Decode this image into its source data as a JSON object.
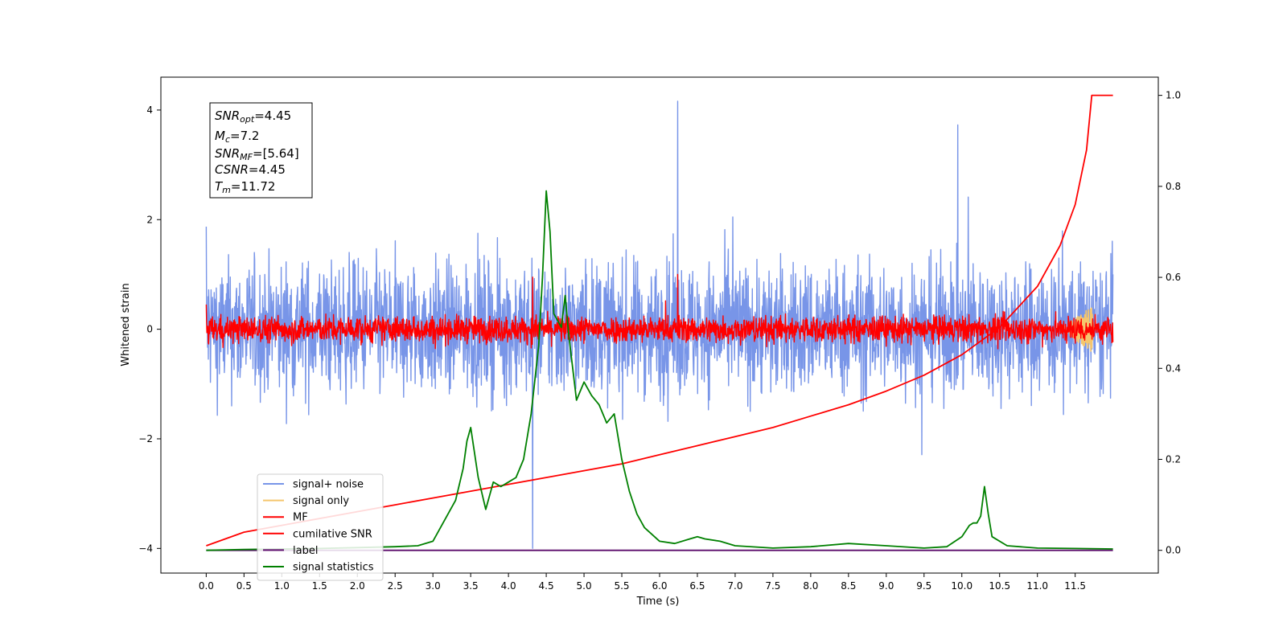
{
  "chart_data": {
    "type": "line",
    "xlabel": "Time (s)",
    "ylabel": "Whitened strain",
    "xlim": [
      -0.6,
      12.6
    ],
    "ylim": [
      -4.45,
      4.6
    ],
    "y2lim": [
      -0.05,
      1.04
    ],
    "grid": false,
    "legend_position": "lower-left",
    "x_ticks": [
      "0.0",
      "0.5",
      "1.0",
      "1.5",
      "2.0",
      "2.5",
      "3.0",
      "3.5",
      "4.0",
      "4.5",
      "5.0",
      "5.5",
      "6.0",
      "6.5",
      "7.0",
      "7.5",
      "8.0",
      "8.5",
      "9.0",
      "9.5",
      "10.0",
      "10.5",
      "11.0",
      "11.5"
    ],
    "y_ticks": [
      "4",
      "2",
      "0",
      "−2",
      "−4"
    ],
    "y2_ticks": [
      "1.0",
      "0.8",
      "0.6",
      "0.4",
      "0.2",
      "0.0"
    ],
    "info_box": {
      "snr_opt": {
        "base": "SNR",
        "sub": "opt",
        "value": "=4.45"
      },
      "mc": {
        "base": "M",
        "sub": "c",
        "value": "=7.2"
      },
      "snr_mf": {
        "base": "SNR",
        "sub": "MF",
        "value": "=[5.64]"
      },
      "csnr": {
        "base": "CSNR",
        "value": "=4.45"
      },
      "tm": {
        "base": "T",
        "sub": "m",
        "value": "=11.72"
      }
    },
    "series": [
      {
        "name": "signal+ noise",
        "color": "#7895e8",
        "axis": "left",
        "style": "noise",
        "x_range": [
          0,
          12
        ],
        "spread": 1.1,
        "peaks": [
          4.16,
          -4.0
        ]
      },
      {
        "name": "signal only",
        "color": "#f5c66e",
        "axis": "left",
        "style": "chirp",
        "x_range": [
          11.3,
          11.76
        ],
        "amplitude": 0.45
      },
      {
        "name": "MF",
        "color": "#ff0000",
        "axis": "left",
        "style": "noise",
        "x_range": [
          0,
          12
        ],
        "spread": 0.22,
        "peaks": [
          1.0,
          0.95
        ]
      },
      {
        "name": "cumilative SNR",
        "color": "#ff0000",
        "axis": "right",
        "x": [
          0.0,
          0.5,
          1.0,
          1.5,
          2.0,
          2.5,
          3.0,
          3.5,
          4.0,
          4.5,
          5.0,
          5.5,
          6.0,
          6.5,
          7.0,
          7.5,
          8.0,
          8.5,
          9.0,
          9.5,
          10.0,
          10.5,
          11.0,
          11.3,
          11.5,
          11.65,
          11.72,
          12.0
        ],
        "values": [
          0.01,
          0.04,
          0.055,
          0.07,
          0.085,
          0.1,
          0.115,
          0.13,
          0.145,
          0.16,
          0.175,
          0.19,
          0.21,
          0.23,
          0.25,
          0.27,
          0.295,
          0.32,
          0.35,
          0.385,
          0.43,
          0.49,
          0.58,
          0.67,
          0.76,
          0.88,
          1.0,
          1.0
        ]
      },
      {
        "name": "label",
        "color": "#5b0a6b",
        "axis": "right",
        "x": [
          0,
          12
        ],
        "values": [
          0.0,
          0.0
        ]
      },
      {
        "name": "signal statistics",
        "color": "#008000",
        "axis": "right",
        "x": [
          0.0,
          0.5,
          1.0,
          1.5,
          2.0,
          2.5,
          2.8,
          3.0,
          3.1,
          3.2,
          3.3,
          3.4,
          3.45,
          3.5,
          3.6,
          3.7,
          3.8,
          3.9,
          4.0,
          4.1,
          4.2,
          4.3,
          4.4,
          4.45,
          4.5,
          4.55,
          4.6,
          4.7,
          4.75,
          4.8,
          4.9,
          5.0,
          5.1,
          5.2,
          5.3,
          5.4,
          5.5,
          5.6,
          5.7,
          5.8,
          6.0,
          6.2,
          6.4,
          6.5,
          6.6,
          6.8,
          7.0,
          7.5,
          8.0,
          8.5,
          9.0,
          9.5,
          9.8,
          10.0,
          10.1,
          10.15,
          10.2,
          10.25,
          10.3,
          10.35,
          10.4,
          10.6,
          11.0,
          11.5,
          12.0
        ],
        "values": [
          0.0,
          0.002,
          0.003,
          0.004,
          0.006,
          0.008,
          0.01,
          0.02,
          0.05,
          0.08,
          0.11,
          0.18,
          0.24,
          0.27,
          0.16,
          0.09,
          0.15,
          0.14,
          0.15,
          0.16,
          0.2,
          0.3,
          0.45,
          0.6,
          0.79,
          0.7,
          0.52,
          0.49,
          0.56,
          0.47,
          0.33,
          0.37,
          0.34,
          0.32,
          0.28,
          0.3,
          0.2,
          0.13,
          0.08,
          0.05,
          0.02,
          0.015,
          0.025,
          0.03,
          0.025,
          0.02,
          0.01,
          0.005,
          0.008,
          0.015,
          0.01,
          0.005,
          0.008,
          0.03,
          0.055,
          0.06,
          0.06,
          0.075,
          0.14,
          0.08,
          0.03,
          0.01,
          0.005,
          0.004,
          0.003
        ]
      }
    ]
  }
}
